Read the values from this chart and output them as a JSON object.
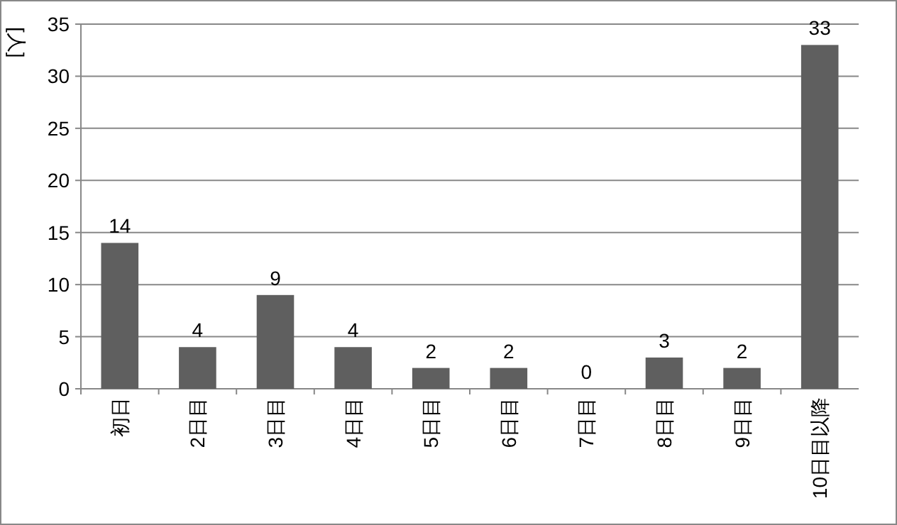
{
  "chart_data": {
    "type": "bar",
    "ylabel": "[人]",
    "categories": [
      "初日",
      "2日目",
      "3日目",
      "4日目",
      "5日目",
      "6日目",
      "7日目",
      "8日目",
      "9日目",
      "10日目以降"
    ],
    "values": [
      14,
      4,
      9,
      4,
      2,
      2,
      0,
      3,
      2,
      33
    ],
    "color": "#5f5f5f",
    "ylim": [
      0,
      35
    ],
    "yticks": [
      0,
      5,
      10,
      15,
      20,
      25,
      30,
      35
    ],
    "grid": "y",
    "data_labels": true
  }
}
